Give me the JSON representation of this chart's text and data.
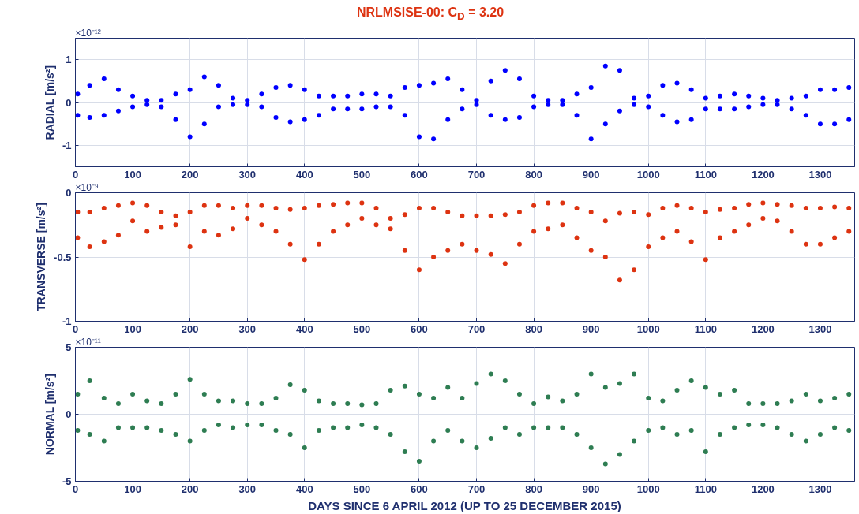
{
  "chart_data": [
    {
      "type": "scatter",
      "title": "NRLMSISE-00: C$_{D}$ = 3.20",
      "ylabel": "RADIAL [m/s²]",
      "annotations": [
        "×10⁻¹²"
      ],
      "marker": "circle",
      "grid": true,
      "x": [
        4,
        25,
        50,
        75,
        100,
        125,
        150,
        175,
        200,
        225,
        250,
        275,
        300,
        325,
        350,
        375,
        400,
        425,
        450,
        475,
        500,
        525,
        550,
        575,
        600,
        625,
        650,
        675,
        700,
        725,
        750,
        775,
        800,
        825,
        850,
        875,
        900,
        925,
        950,
        975,
        1000,
        1025,
        1050,
        1075,
        1100,
        1125,
        1150,
        1175,
        1200,
        1225,
        1250,
        1275,
        1300,
        1325,
        1350
      ],
      "xlim": [
        0,
        1360
      ],
      "xticks": [
        0,
        100,
        200,
        300,
        400,
        500,
        600,
        700,
        800,
        900,
        1000,
        1100,
        1200,
        1300
      ],
      "ylim": [
        -1.5,
        1.5
      ],
      "yticks": [
        -1,
        0,
        1
      ],
      "series": [
        {
          "color": "#0000ff",
          "values": [
            0.2,
            0.4,
            0.55,
            0.3,
            0.15,
            0.05,
            0.05,
            0.2,
            0.3,
            0.6,
            0.4,
            0.1,
            0.05,
            0.2,
            0.35,
            0.4,
            0.3,
            0.15,
            0.15,
            0.15,
            0.2,
            0.2,
            0.15,
            0.35,
            0.4,
            0.45,
            0.55,
            0.3,
            0.05,
            0.5,
            0.75,
            0.55,
            0.15,
            0.05,
            0.05,
            0.2,
            0.35,
            0.85,
            0.75,
            0.1,
            0.15,
            0.4,
            0.45,
            0.3,
            0.1,
            0.15,
            0.2,
            0.15,
            0.1,
            0.05,
            0.1,
            0.15,
            0.3,
            0.3,
            0.35
          ]
        },
        {
          "color": "#0000ff",
          "values": [
            -0.3,
            -0.35,
            -0.3,
            -0.2,
            -0.1,
            -0.05,
            -0.1,
            -0.4,
            -0.8,
            -0.5,
            -0.1,
            -0.05,
            -0.05,
            -0.1,
            -0.35,
            -0.45,
            -0.4,
            -0.3,
            -0.15,
            -0.15,
            -0.15,
            -0.1,
            -0.1,
            -0.3,
            -0.8,
            -0.85,
            -0.4,
            -0.15,
            -0.05,
            -0.3,
            -0.4,
            -0.35,
            -0.1,
            -0.05,
            -0.05,
            -0.3,
            -0.85,
            -0.5,
            -0.2,
            -0.05,
            -0.1,
            -0.3,
            -0.45,
            -0.4,
            -0.15,
            -0.15,
            -0.15,
            -0.1,
            -0.05,
            -0.05,
            -0.15,
            -0.3,
            -0.5,
            -0.5,
            -0.4
          ]
        }
      ]
    },
    {
      "type": "scatter",
      "ylabel": "TRANSVERSE [m/s²]",
      "annotations": [
        "×10⁻⁹"
      ],
      "marker": "circle",
      "grid": true,
      "x": [
        4,
        25,
        50,
        75,
        100,
        125,
        150,
        175,
        200,
        225,
        250,
        275,
        300,
        325,
        350,
        375,
        400,
        425,
        450,
        475,
        500,
        525,
        550,
        575,
        600,
        625,
        650,
        675,
        700,
        725,
        750,
        775,
        800,
        825,
        850,
        875,
        900,
        925,
        950,
        975,
        1000,
        1025,
        1050,
        1075,
        1100,
        1125,
        1150,
        1175,
        1200,
        1225,
        1250,
        1275,
        1300,
        1325,
        1350
      ],
      "xlim": [
        0,
        1360
      ],
      "xticks": [
        0,
        100,
        200,
        300,
        400,
        500,
        600,
        700,
        800,
        900,
        1000,
        1100,
        1200,
        1300
      ],
      "ylim": [
        -1,
        0
      ],
      "yticks": [
        -1,
        -0.5,
        0
      ],
      "series": [
        {
          "color": "#dd3311",
          "values": [
            -0.15,
            -0.15,
            -0.12,
            -0.1,
            -0.08,
            -0.1,
            -0.15,
            -0.18,
            -0.15,
            -0.1,
            -0.1,
            -0.12,
            -0.1,
            -0.1,
            -0.12,
            -0.13,
            -0.12,
            -0.1,
            -0.09,
            -0.08,
            -0.08,
            -0.12,
            -0.2,
            -0.17,
            -0.12,
            -0.12,
            -0.15,
            -0.18,
            -0.18,
            -0.18,
            -0.17,
            -0.15,
            -0.1,
            -0.08,
            -0.08,
            -0.12,
            -0.15,
            -0.22,
            -0.16,
            -0.15,
            -0.17,
            -0.12,
            -0.1,
            -0.12,
            -0.15,
            -0.13,
            -0.12,
            -0.09,
            -0.08,
            -0.09,
            -0.1,
            -0.12,
            -0.12,
            -0.11,
            -0.12
          ]
        },
        {
          "color": "#dd3311",
          "values": [
            -0.35,
            -0.42,
            -0.38,
            -0.33,
            -0.22,
            -0.3,
            -0.27,
            -0.25,
            -0.42,
            -0.3,
            -0.33,
            -0.28,
            -0.2,
            -0.25,
            -0.3,
            -0.4,
            -0.52,
            -0.4,
            -0.3,
            -0.25,
            -0.2,
            -0.25,
            -0.28,
            -0.45,
            -0.6,
            -0.5,
            -0.45,
            -0.4,
            -0.45,
            -0.48,
            -0.55,
            -0.4,
            -0.3,
            -0.28,
            -0.25,
            -0.35,
            -0.45,
            -0.5,
            -0.68,
            -0.6,
            -0.42,
            -0.35,
            -0.3,
            -0.38,
            -0.52,
            -0.35,
            -0.3,
            -0.25,
            -0.2,
            -0.22,
            -0.3,
            -0.4,
            -0.4,
            -0.35,
            -0.3
          ]
        }
      ]
    },
    {
      "type": "scatter",
      "ylabel": "NORMAL [m/s²]",
      "xlabel": "DAYS SINCE 6 APRIL 2012 (UP TO 25 DECEMBER 2015)",
      "annotations": [
        "×10⁻¹¹"
      ],
      "marker": "circle",
      "grid": true,
      "x": [
        4,
        25,
        50,
        75,
        100,
        125,
        150,
        175,
        200,
        225,
        250,
        275,
        300,
        325,
        350,
        375,
        400,
        425,
        450,
        475,
        500,
        525,
        550,
        575,
        600,
        625,
        650,
        675,
        700,
        725,
        750,
        775,
        800,
        825,
        850,
        875,
        900,
        925,
        950,
        975,
        1000,
        1025,
        1050,
        1075,
        1100,
        1125,
        1150,
        1175,
        1200,
        1225,
        1250,
        1275,
        1300,
        1325,
        1350
      ],
      "xlim": [
        0,
        1360
      ],
      "xticks": [
        0,
        100,
        200,
        300,
        400,
        500,
        600,
        700,
        800,
        900,
        1000,
        1100,
        1200,
        1300
      ],
      "ylim": [
        -5,
        5
      ],
      "yticks": [
        -5,
        0,
        5
      ],
      "series": [
        {
          "color": "#2e7d52",
          "values": [
            1.5,
            2.5,
            1.2,
            0.8,
            1.5,
            1,
            0.8,
            1.5,
            2.6,
            1.5,
            1,
            1,
            0.8,
            0.8,
            1.2,
            2.2,
            1.8,
            1,
            0.8,
            0.8,
            0.7,
            0.8,
            1.8,
            2.1,
            1.5,
            1.2,
            2,
            1.2,
            2.3,
            3,
            2.5,
            1.5,
            0.8,
            1.3,
            1,
            1.5,
            3,
            2,
            2.3,
            3,
            1.2,
            1,
            1.8,
            2.5,
            2,
            1.5,
            1.8,
            0.8,
            0.8,
            0.8,
            1,
            1.5,
            1,
            1.2,
            1.5
          ]
        },
        {
          "color": "#2e7d52",
          "values": [
            -1.2,
            -1.5,
            -2,
            -1,
            -1,
            -1,
            -1.2,
            -1.5,
            -2,
            -1.2,
            -0.8,
            -1,
            -0.8,
            -0.8,
            -1.2,
            -1.5,
            -2.5,
            -1.2,
            -1,
            -1,
            -0.8,
            -1,
            -1.5,
            -2.8,
            -3.5,
            -2,
            -1.2,
            -2,
            -2.5,
            -1.8,
            -1,
            -1.5,
            -1,
            -1,
            -1,
            -1.5,
            -2.5,
            -3.7,
            -3,
            -2,
            -1.2,
            -1,
            -1.5,
            -1.2,
            -2.8,
            -1.5,
            -1,
            -0.8,
            -0.8,
            -1,
            -1.5,
            -2,
            -1.5,
            -1,
            -1.2
          ]
        }
      ]
    }
  ]
}
